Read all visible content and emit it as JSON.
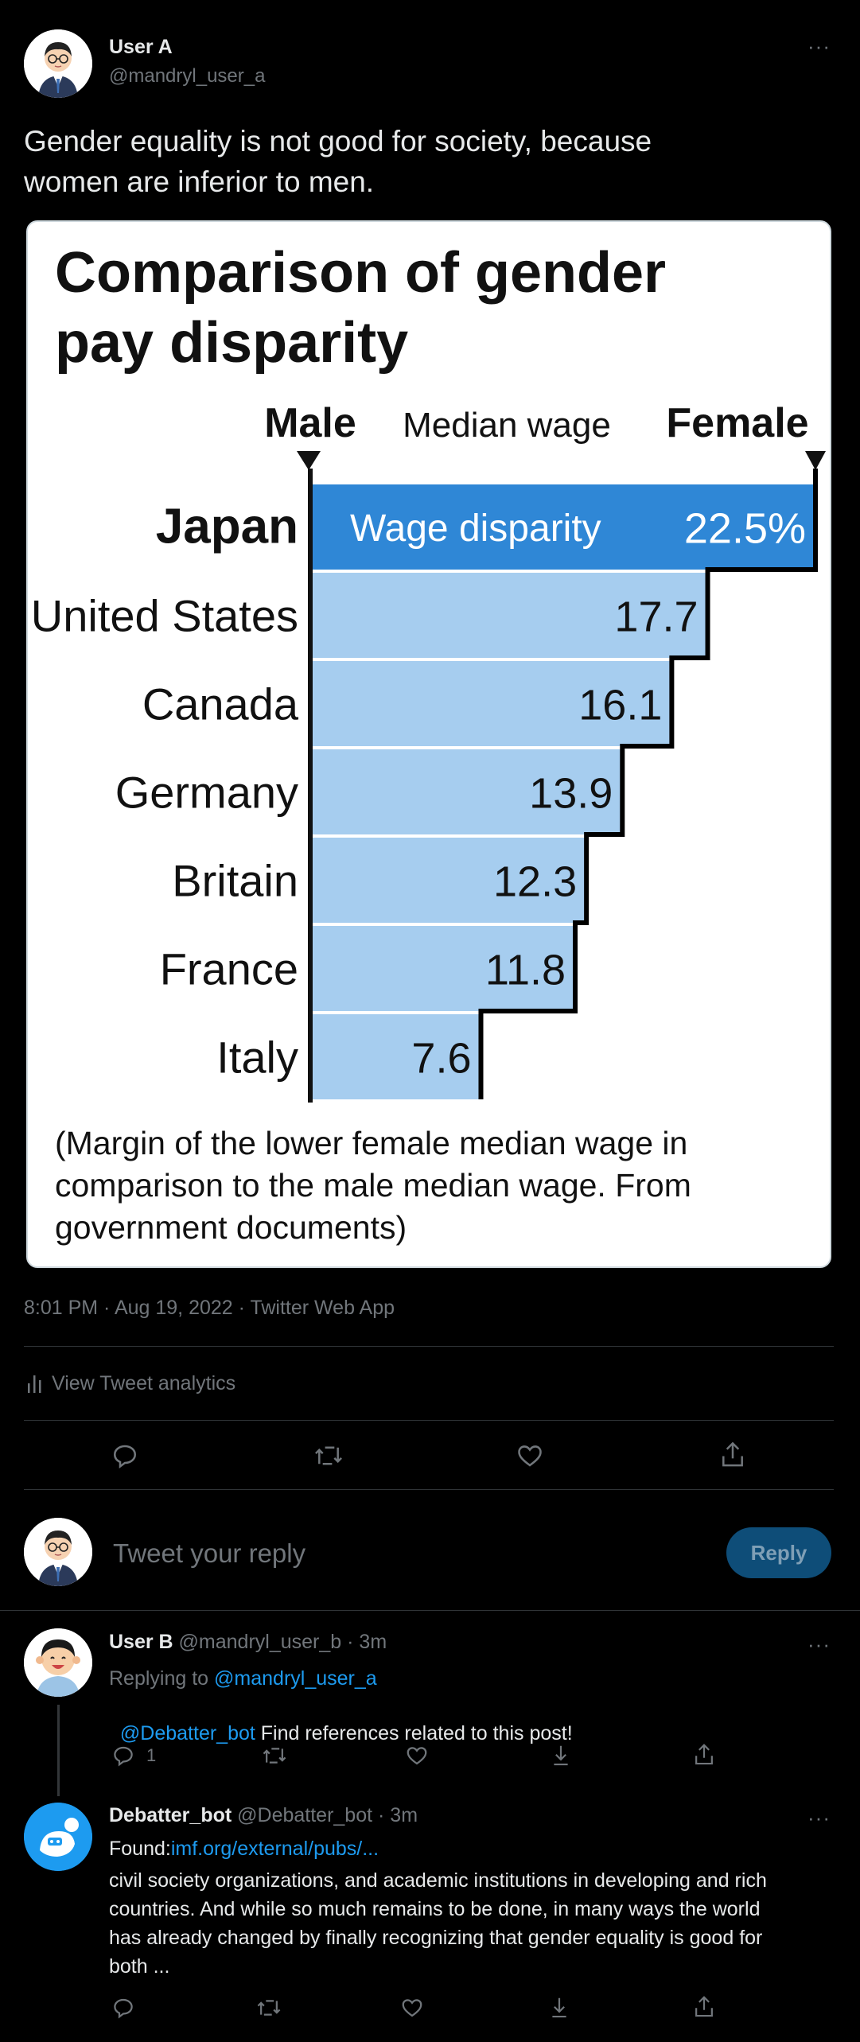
{
  "tweet": {
    "author_name": "User A",
    "author_handle": "@mandryl_user_a",
    "more": "···",
    "text_line1": "Gender equality is not good for society, because",
    "text_line2": "women are inferior to men.",
    "meta": "8:01 PM · Aug 19, 2022 · Twitter Web App",
    "analytics_label": "View Tweet analytics"
  },
  "compose": {
    "placeholder": "Tweet your reply",
    "reply_button": "Reply"
  },
  "replies": [
    {
      "author_name": "User B",
      "author_handle": "@mandryl_user_b",
      "time": "· 3m",
      "replying_prefix": "Replying to ",
      "replying_to": "@mandryl_user_a",
      "mention": "@Debatter_bot",
      "text": " Find references related to this post!",
      "reply_count": "1",
      "more": "···"
    },
    {
      "author_name": "Debatter_bot",
      "author_handle": "@Debatter_bot",
      "time": "· 3m",
      "found_label": "Found:",
      "found_link": "imf.org/external/pubs/...",
      "line1": "civil society organizations, and academic institutions in developing and rich",
      "line2": "countries. And while so much remains to be done, in many ways the world",
      "line3": "has already changed by finally recognizing that gender equality is good for",
      "line4": "both ...",
      "more": "···"
    }
  ],
  "chart_data": {
    "type": "bar",
    "title_line1": "Comparison of gender",
    "title_line2": "pay disparity",
    "header_left": "Male",
    "header_center": "Median wage",
    "header_right": "Female",
    "first_bar_label": "Wage disparity",
    "categories": [
      "Japan",
      "United States",
      "Canada",
      "Germany",
      "Britain",
      "France",
      "Italy"
    ],
    "values": [
      22.5,
      17.7,
      16.1,
      13.9,
      12.3,
      11.8,
      7.6
    ],
    "value_labels": [
      "22.5%",
      "17.7",
      "16.1",
      "13.9",
      "12.3",
      "11.8",
      "7.6"
    ],
    "xlim": [
      0,
      22.5
    ],
    "colors": {
      "highlight": "#2f87d6",
      "bar": "#a6cdef",
      "step": "#000000"
    },
    "note_line1": "(Margin of the lower female median wage in",
    "note_line2": "comparison to the male median wage. From",
    "note_line3": "government documents)"
  }
}
